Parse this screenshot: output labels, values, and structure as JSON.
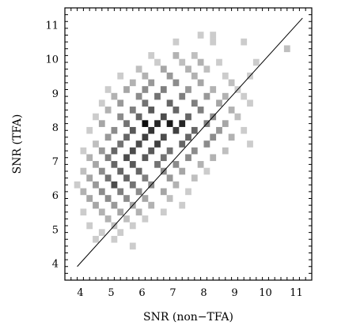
{
  "chart_data": {
    "type": "heatmap",
    "xlabel": "SNR (non−TFA)",
    "ylabel": "SNR (TFA)",
    "xlim": [
      3.5,
      11.5
    ],
    "ylim": [
      3.5,
      11.5
    ],
    "xticks": [
      "4",
      "5",
      "6",
      "7",
      "8",
      "9",
      "10",
      "11"
    ],
    "yticks": [
      "4",
      "5",
      "6",
      "7",
      "8",
      "9",
      "10",
      "11"
    ],
    "bin_size": 0.2,
    "grid": false,
    "reference_line": {
      "label": "",
      "from": [
        3.9,
        3.9
      ],
      "to": [
        11.2,
        11.2
      ]
    },
    "cell_color": "#000000",
    "cells_note": "x, y = lower-left bin corner in SNR units; d = relative density 0-1",
    "cells": [
      {
        "x": 7.8,
        "y": 10.6,
        "d": 0.2
      },
      {
        "x": 8.2,
        "y": 10.6,
        "d": 0.2
      },
      {
        "x": 7.0,
        "y": 10.4,
        "d": 0.2
      },
      {
        "x": 8.2,
        "y": 10.4,
        "d": 0.2
      },
      {
        "x": 9.2,
        "y": 10.4,
        "d": 0.2
      },
      {
        "x": 10.6,
        "y": 10.2,
        "d": 0.25
      },
      {
        "x": 6.2,
        "y": 10.0,
        "d": 0.2
      },
      {
        "x": 7.0,
        "y": 10.0,
        "d": 0.3
      },
      {
        "x": 7.6,
        "y": 10.0,
        "d": 0.25
      },
      {
        "x": 6.4,
        "y": 9.8,
        "d": 0.2
      },
      {
        "x": 7.2,
        "y": 9.8,
        "d": 0.25
      },
      {
        "x": 7.8,
        "y": 9.8,
        "d": 0.3
      },
      {
        "x": 8.4,
        "y": 9.8,
        "d": 0.2
      },
      {
        "x": 9.6,
        "y": 9.8,
        "d": 0.2
      },
      {
        "x": 5.8,
        "y": 9.6,
        "d": 0.25
      },
      {
        "x": 6.6,
        "y": 9.6,
        "d": 0.35
      },
      {
        "x": 7.4,
        "y": 9.6,
        "d": 0.3
      },
      {
        "x": 8.0,
        "y": 9.6,
        "d": 0.25
      },
      {
        "x": 5.2,
        "y": 9.4,
        "d": 0.2
      },
      {
        "x": 6.0,
        "y": 9.4,
        "d": 0.3
      },
      {
        "x": 6.8,
        "y": 9.4,
        "d": 0.4
      },
      {
        "x": 7.6,
        "y": 9.4,
        "d": 0.3
      },
      {
        "x": 8.6,
        "y": 9.4,
        "d": 0.2
      },
      {
        "x": 9.4,
        "y": 9.4,
        "d": 0.2
      },
      {
        "x": 5.6,
        "y": 9.2,
        "d": 0.3
      },
      {
        "x": 6.2,
        "y": 9.2,
        "d": 0.4
      },
      {
        "x": 7.0,
        "y": 9.2,
        "d": 0.45
      },
      {
        "x": 7.8,
        "y": 9.2,
        "d": 0.35
      },
      {
        "x": 8.8,
        "y": 9.2,
        "d": 0.25
      },
      {
        "x": 4.8,
        "y": 9.0,
        "d": 0.2
      },
      {
        "x": 5.4,
        "y": 9.0,
        "d": 0.35
      },
      {
        "x": 6.0,
        "y": 9.0,
        "d": 0.45
      },
      {
        "x": 6.6,
        "y": 9.0,
        "d": 0.5
      },
      {
        "x": 7.4,
        "y": 9.0,
        "d": 0.4
      },
      {
        "x": 8.2,
        "y": 9.0,
        "d": 0.3
      },
      {
        "x": 9.0,
        "y": 9.0,
        "d": 0.2
      },
      {
        "x": 5.0,
        "y": 8.8,
        "d": 0.3
      },
      {
        "x": 5.8,
        "y": 8.8,
        "d": 0.45
      },
      {
        "x": 6.4,
        "y": 8.8,
        "d": 0.55
      },
      {
        "x": 7.2,
        "y": 8.8,
        "d": 0.5
      },
      {
        "x": 8.0,
        "y": 8.8,
        "d": 0.4
      },
      {
        "x": 8.6,
        "y": 8.8,
        "d": 0.3
      },
      {
        "x": 9.2,
        "y": 8.8,
        "d": 0.2
      },
      {
        "x": 4.6,
        "y": 8.6,
        "d": 0.2
      },
      {
        "x": 5.2,
        "y": 8.6,
        "d": 0.4
      },
      {
        "x": 6.0,
        "y": 8.6,
        "d": 0.55
      },
      {
        "x": 6.8,
        "y": 8.6,
        "d": 0.6
      },
      {
        "x": 7.6,
        "y": 8.6,
        "d": 0.5
      },
      {
        "x": 8.4,
        "y": 8.6,
        "d": 0.35
      },
      {
        "x": 9.4,
        "y": 8.6,
        "d": 0.2
      },
      {
        "x": 4.8,
        "y": 8.4,
        "d": 0.3
      },
      {
        "x": 5.6,
        "y": 8.4,
        "d": 0.5
      },
      {
        "x": 6.2,
        "y": 8.4,
        "d": 0.65
      },
      {
        "x": 7.0,
        "y": 8.4,
        "d": 0.6
      },
      {
        "x": 7.8,
        "y": 8.4,
        "d": 0.5
      },
      {
        "x": 8.8,
        "y": 8.4,
        "d": 0.3
      },
      {
        "x": 4.4,
        "y": 8.2,
        "d": 0.2
      },
      {
        "x": 5.2,
        "y": 8.2,
        "d": 0.45
      },
      {
        "x": 5.8,
        "y": 8.2,
        "d": 0.6
      },
      {
        "x": 6.6,
        "y": 8.2,
        "d": 0.7
      },
      {
        "x": 7.4,
        "y": 8.2,
        "d": 0.6
      },
      {
        "x": 8.2,
        "y": 8.2,
        "d": 0.45
      },
      {
        "x": 9.0,
        "y": 8.2,
        "d": 0.25
      },
      {
        "x": 4.6,
        "y": 8.0,
        "d": 0.35
      },
      {
        "x": 5.4,
        "y": 8.0,
        "d": 0.55
      },
      {
        "x": 6.0,
        "y": 8.0,
        "d": 0.95
      },
      {
        "x": 6.4,
        "y": 8.0,
        "d": 0.85
      },
      {
        "x": 6.8,
        "y": 8.0,
        "d": 0.9
      },
      {
        "x": 7.2,
        "y": 8.0,
        "d": 0.85
      },
      {
        "x": 8.0,
        "y": 8.0,
        "d": 0.5
      },
      {
        "x": 8.6,
        "y": 8.0,
        "d": 0.35
      },
      {
        "x": 4.2,
        "y": 7.8,
        "d": 0.2
      },
      {
        "x": 5.0,
        "y": 7.8,
        "d": 0.45
      },
      {
        "x": 5.6,
        "y": 7.8,
        "d": 0.65
      },
      {
        "x": 6.2,
        "y": 7.8,
        "d": 0.8
      },
      {
        "x": 7.0,
        "y": 7.8,
        "d": 0.75
      },
      {
        "x": 7.6,
        "y": 7.8,
        "d": 0.6
      },
      {
        "x": 8.4,
        "y": 7.8,
        "d": 0.4
      },
      {
        "x": 9.2,
        "y": 7.8,
        "d": 0.2
      },
      {
        "x": 4.8,
        "y": 7.6,
        "d": 0.4
      },
      {
        "x": 5.4,
        "y": 7.6,
        "d": 0.6
      },
      {
        "x": 6.0,
        "y": 7.6,
        "d": 0.75
      },
      {
        "x": 6.6,
        "y": 7.6,
        "d": 0.7
      },
      {
        "x": 7.4,
        "y": 7.6,
        "d": 0.6
      },
      {
        "x": 8.2,
        "y": 7.6,
        "d": 0.45
      },
      {
        "x": 8.8,
        "y": 7.6,
        "d": 0.3
      },
      {
        "x": 4.4,
        "y": 7.4,
        "d": 0.25
      },
      {
        "x": 5.2,
        "y": 7.4,
        "d": 0.55
      },
      {
        "x": 5.8,
        "y": 7.4,
        "d": 0.7
      },
      {
        "x": 6.4,
        "y": 7.4,
        "d": 0.75
      },
      {
        "x": 7.2,
        "y": 7.4,
        "d": 0.6
      },
      {
        "x": 8.0,
        "y": 7.4,
        "d": 0.45
      },
      {
        "x": 9.4,
        "y": 7.4,
        "d": 0.2
      },
      {
        "x": 4.0,
        "y": 7.2,
        "d": 0.2
      },
      {
        "x": 4.6,
        "y": 7.2,
        "d": 0.4
      },
      {
        "x": 5.0,
        "y": 7.2,
        "d": 0.6
      },
      {
        "x": 5.6,
        "y": 7.2,
        "d": 0.7
      },
      {
        "x": 6.2,
        "y": 7.2,
        "d": 0.65
      },
      {
        "x": 6.8,
        "y": 7.2,
        "d": 0.55
      },
      {
        "x": 7.6,
        "y": 7.2,
        "d": 0.45
      },
      {
        "x": 8.6,
        "y": 7.2,
        "d": 0.25
      },
      {
        "x": 4.2,
        "y": 7.0,
        "d": 0.3
      },
      {
        "x": 4.8,
        "y": 7.0,
        "d": 0.5
      },
      {
        "x": 5.4,
        "y": 7.0,
        "d": 0.7
      },
      {
        "x": 6.0,
        "y": 7.0,
        "d": 0.65
      },
      {
        "x": 6.6,
        "y": 7.0,
        "d": 0.55
      },
      {
        "x": 7.4,
        "y": 7.0,
        "d": 0.45
      },
      {
        "x": 8.2,
        "y": 7.0,
        "d": 0.3
      },
      {
        "x": 4.4,
        "y": 6.8,
        "d": 0.35
      },
      {
        "x": 5.0,
        "y": 6.8,
        "d": 0.6
      },
      {
        "x": 5.6,
        "y": 6.8,
        "d": 0.65
      },
      {
        "x": 6.4,
        "y": 6.8,
        "d": 0.55
      },
      {
        "x": 7.0,
        "y": 6.8,
        "d": 0.45
      },
      {
        "x": 7.8,
        "y": 6.8,
        "d": 0.3
      },
      {
        "x": 4.0,
        "y": 6.6,
        "d": 0.25
      },
      {
        "x": 4.6,
        "y": 6.6,
        "d": 0.45
      },
      {
        "x": 5.2,
        "y": 6.6,
        "d": 0.6
      },
      {
        "x": 5.8,
        "y": 6.6,
        "d": 0.6
      },
      {
        "x": 6.6,
        "y": 6.6,
        "d": 0.45
      },
      {
        "x": 7.2,
        "y": 6.6,
        "d": 0.35
      },
      {
        "x": 8.0,
        "y": 6.6,
        "d": 0.2
      },
      {
        "x": 4.2,
        "y": 6.4,
        "d": 0.35
      },
      {
        "x": 4.8,
        "y": 6.4,
        "d": 0.55
      },
      {
        "x": 5.4,
        "y": 6.4,
        "d": 0.6
      },
      {
        "x": 6.0,
        "y": 6.4,
        "d": 0.5
      },
      {
        "x": 6.8,
        "y": 6.4,
        "d": 0.4
      },
      {
        "x": 7.6,
        "y": 6.4,
        "d": 0.25
      },
      {
        "x": 3.8,
        "y": 6.2,
        "d": 0.2
      },
      {
        "x": 4.4,
        "y": 6.2,
        "d": 0.4
      },
      {
        "x": 5.0,
        "y": 6.2,
        "d": 0.7
      },
      {
        "x": 5.6,
        "y": 6.2,
        "d": 0.55
      },
      {
        "x": 6.2,
        "y": 6.2,
        "d": 0.45
      },
      {
        "x": 7.0,
        "y": 6.2,
        "d": 0.3
      },
      {
        "x": 4.0,
        "y": 6.0,
        "d": 0.3
      },
      {
        "x": 4.6,
        "y": 6.0,
        "d": 0.45
      },
      {
        "x": 5.2,
        "y": 6.0,
        "d": 0.5
      },
      {
        "x": 5.8,
        "y": 6.0,
        "d": 0.45
      },
      {
        "x": 6.6,
        "y": 6.0,
        "d": 0.35
      },
      {
        "x": 7.4,
        "y": 6.0,
        "d": 0.2
      },
      {
        "x": 4.2,
        "y": 5.8,
        "d": 0.35
      },
      {
        "x": 4.8,
        "y": 5.8,
        "d": 0.45
      },
      {
        "x": 5.4,
        "y": 5.8,
        "d": 0.45
      },
      {
        "x": 6.0,
        "y": 5.8,
        "d": 0.35
      },
      {
        "x": 6.8,
        "y": 5.8,
        "d": 0.25
      },
      {
        "x": 4.4,
        "y": 5.6,
        "d": 0.35
      },
      {
        "x": 5.0,
        "y": 5.6,
        "d": 0.4
      },
      {
        "x": 5.6,
        "y": 5.6,
        "d": 0.35
      },
      {
        "x": 6.2,
        "y": 5.6,
        "d": 0.3
      },
      {
        "x": 7.2,
        "y": 5.6,
        "d": 0.2
      },
      {
        "x": 4.0,
        "y": 5.4,
        "d": 0.2
      },
      {
        "x": 4.6,
        "y": 5.4,
        "d": 0.3
      },
      {
        "x": 5.2,
        "y": 5.4,
        "d": 0.35
      },
      {
        "x": 5.8,
        "y": 5.4,
        "d": 0.3
      },
      {
        "x": 6.6,
        "y": 5.4,
        "d": 0.2
      },
      {
        "x": 4.8,
        "y": 5.2,
        "d": 0.3
      },
      {
        "x": 5.4,
        "y": 5.2,
        "d": 0.25
      },
      {
        "x": 6.0,
        "y": 5.2,
        "d": 0.2
      },
      {
        "x": 4.2,
        "y": 5.0,
        "d": 0.2
      },
      {
        "x": 5.0,
        "y": 5.0,
        "d": 0.25
      },
      {
        "x": 5.6,
        "y": 5.0,
        "d": 0.2
      },
      {
        "x": 4.6,
        "y": 4.8,
        "d": 0.2
      },
      {
        "x": 5.2,
        "y": 4.8,
        "d": 0.2
      },
      {
        "x": 4.4,
        "y": 4.6,
        "d": 0.2
      },
      {
        "x": 5.0,
        "y": 4.6,
        "d": 0.2
      },
      {
        "x": 5.6,
        "y": 4.4,
        "d": 0.2
      }
    ]
  }
}
